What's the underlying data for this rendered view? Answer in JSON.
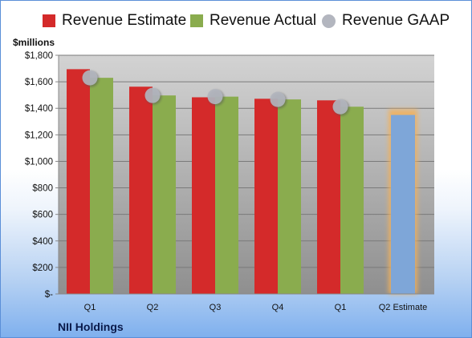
{
  "legend": {
    "estimate_label": "Revenue Estimate",
    "actual_label": "Revenue Actual",
    "gaap_label": "Revenue GAAP"
  },
  "units_label": "$millions",
  "company": "NII Holdings",
  "colors": {
    "estimate": "#d42a2a",
    "actual": "#8aac4e",
    "gaap": "#b3b6bf",
    "projection": "#7ea6d8",
    "projection_glow": "#f3b15a",
    "plot_bg_top": "#d3d3d3",
    "plot_bg_bottom": "#8f8f8f"
  },
  "chart_data": {
    "type": "bar",
    "categories": [
      "Q1",
      "Q2",
      "Q3",
      "Q4",
      "Q1",
      "Q2 Estimate"
    ],
    "series": [
      {
        "name": "Revenue Estimate",
        "values": [
          1695,
          1563,
          1483,
          1472,
          1460,
          null
        ]
      },
      {
        "name": "Revenue Actual",
        "values": [
          1630,
          1497,
          1488,
          1467,
          1412,
          null
        ]
      },
      {
        "name": "Revenue GAAP",
        "values": [
          1630,
          1497,
          1488,
          1467,
          1412,
          null
        ]
      },
      {
        "name": "Q2 Estimate",
        "values": [
          null,
          null,
          null,
          null,
          null,
          1350
        ]
      }
    ],
    "yticks": [
      "$-",
      "$200",
      "$400",
      "$600",
      "$800",
      "$1,000",
      "$1,200",
      "$1,400",
      "$1,600",
      "$1,800"
    ],
    "ylim": [
      0,
      1800
    ],
    "ylabel": "$millions",
    "grid": true,
    "legend_position": "top"
  }
}
